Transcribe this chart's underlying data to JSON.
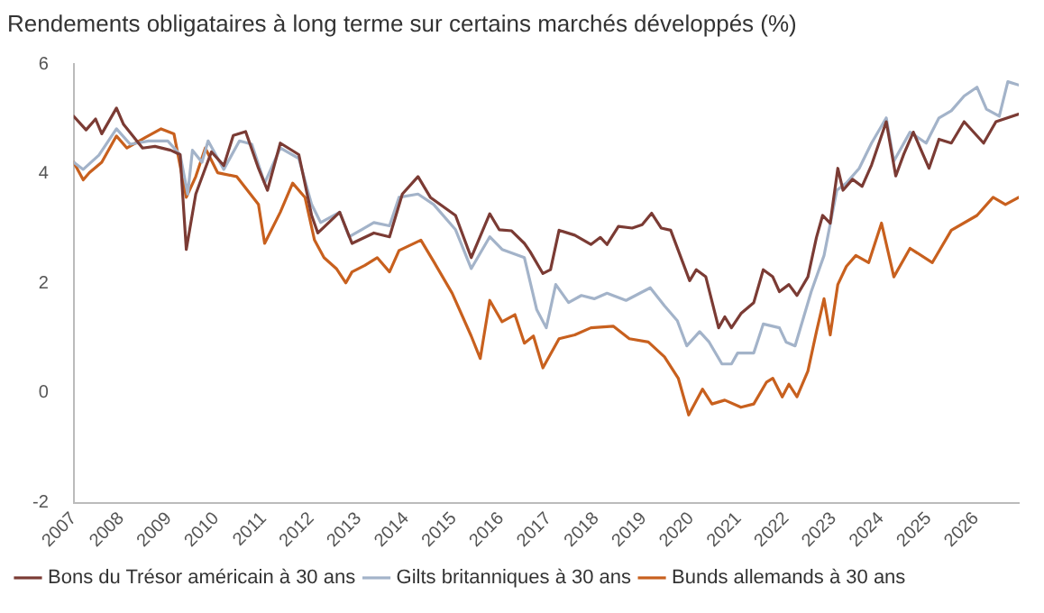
{
  "chart_data": {
    "type": "line",
    "title": "Rendements obligataires à long terme sur certains marchés développés (%)",
    "xlim": [
      2007,
      2026.9
    ],
    "xticks": [
      2007,
      2008,
      2009,
      2010,
      2011,
      2012,
      2013,
      2014,
      2015,
      2016,
      2017,
      2018,
      2019,
      2020,
      2021,
      2022,
      2023,
      2024,
      2025,
      2026
    ],
    "ylim": [
      -2,
      6
    ],
    "yticks": [
      -2,
      0,
      2,
      4,
      6
    ],
    "grid": false,
    "legend": "bottom",
    "marker": "none",
    "line_style": "solid",
    "series": [
      {
        "name": "Bons du Trésor américain à 30 ans",
        "color": "#7b3b34",
        "x": [
          2007.0,
          2007.26,
          2007.46,
          2007.59,
          2007.9,
          2008.05,
          2008.45,
          2008.71,
          2009.04,
          2009.24,
          2009.37,
          2009.57,
          2009.77,
          2009.9,
          2010.16,
          2010.36,
          2010.62,
          2010.89,
          2011.08,
          2011.35,
          2011.74,
          2012.01,
          2012.14,
          2012.6,
          2012.86,
          2013.32,
          2013.65,
          2013.92,
          2014.25,
          2014.51,
          2015.04,
          2015.37,
          2015.76,
          2015.96,
          2016.22,
          2016.49,
          2016.61,
          2016.88,
          2017.04,
          2017.22,
          2017.55,
          2017.89,
          2018.09,
          2018.23,
          2018.47,
          2018.76,
          2018.97,
          2019.17,
          2019.37,
          2019.57,
          2019.77,
          2019.97,
          2020.11,
          2020.31,
          2020.58,
          2020.71,
          2020.85,
          2021.05,
          2021.32,
          2021.52,
          2021.72,
          2021.86,
          2022.06,
          2022.23,
          2022.46,
          2022.64,
          2022.77,
          2022.93,
          2023.09,
          2023.2,
          2023.4,
          2023.6,
          2023.8,
          2024.11,
          2024.31,
          2024.48,
          2024.68,
          2025.01,
          2025.22,
          2025.48,
          2025.75,
          2026.16,
          2026.42,
          2026.9
        ],
        "values": [
          5.05,
          4.8,
          5.0,
          4.73,
          5.2,
          4.9,
          4.47,
          4.5,
          4.43,
          4.35,
          2.62,
          3.63,
          4.1,
          4.4,
          4.15,
          4.7,
          4.77,
          4.1,
          3.7,
          4.56,
          4.35,
          3.24,
          2.92,
          3.3,
          2.73,
          2.92,
          2.85,
          3.63,
          3.95,
          3.57,
          3.24,
          2.47,
          3.27,
          2.98,
          2.96,
          2.73,
          2.58,
          2.18,
          2.25,
          2.97,
          2.88,
          2.71,
          2.84,
          2.71,
          3.04,
          3.01,
          3.07,
          3.28,
          3.01,
          2.97,
          2.51,
          2.05,
          2.25,
          2.12,
          1.19,
          1.39,
          1.19,
          1.45,
          1.65,
          2.25,
          2.12,
          1.85,
          1.98,
          1.78,
          2.12,
          2.84,
          3.24,
          3.1,
          4.1,
          3.7,
          3.9,
          3.77,
          4.16,
          4.95,
          3.96,
          4.36,
          4.76,
          4.1,
          4.63,
          4.56,
          4.95,
          4.56,
          4.95,
          5.09
        ]
      },
      {
        "name": "Gilts britanniques à 30 ans",
        "color": "#a3b3c9",
        "x": [
          2007.0,
          2007.2,
          2007.53,
          2007.9,
          2008.19,
          2008.58,
          2008.98,
          2009.24,
          2009.4,
          2009.5,
          2009.7,
          2009.83,
          2010.16,
          2010.49,
          2010.75,
          2011.02,
          2011.35,
          2011.74,
          2012.01,
          2012.2,
          2012.6,
          2012.8,
          2013.06,
          2013.32,
          2013.65,
          2013.85,
          2014.25,
          2014.58,
          2015.04,
          2015.37,
          2015.76,
          2016.02,
          2016.49,
          2016.75,
          2016.95,
          2017.15,
          2017.42,
          2017.69,
          2017.96,
          2018.23,
          2018.63,
          2019.14,
          2019.44,
          2019.71,
          2019.91,
          2020.18,
          2020.38,
          2020.65,
          2020.85,
          2020.98,
          2021.32,
          2021.52,
          2021.86,
          2022.0,
          2022.19,
          2022.53,
          2022.8,
          2023.07,
          2023.27,
          2023.54,
          2023.8,
          2024.11,
          2024.27,
          2024.61,
          2024.95,
          2025.22,
          2025.48,
          2025.75,
          2026.02,
          2026.22,
          2026.49,
          2026.67,
          2026.9
        ],
        "values": [
          4.21,
          4.08,
          4.34,
          4.82,
          4.54,
          4.6,
          4.6,
          4.35,
          3.63,
          4.43,
          4.21,
          4.6,
          4.08,
          4.6,
          4.54,
          3.83,
          4.47,
          4.28,
          3.44,
          3.11,
          3.3,
          2.85,
          2.98,
          3.11,
          3.05,
          3.57,
          3.63,
          3.44,
          2.98,
          2.27,
          2.85,
          2.62,
          2.47,
          1.52,
          1.19,
          1.98,
          1.65,
          1.78,
          1.72,
          1.82,
          1.69,
          1.92,
          1.59,
          1.32,
          0.86,
          1.12,
          0.93,
          0.53,
          0.53,
          0.73,
          0.73,
          1.26,
          1.19,
          0.93,
          0.86,
          1.85,
          2.51,
          3.7,
          3.83,
          4.1,
          4.56,
          5.02,
          4.23,
          4.76,
          4.56,
          5.02,
          5.15,
          5.42,
          5.58,
          5.18,
          5.05,
          5.68,
          5.62
        ]
      },
      {
        "name": "Bunds allemands à 30 ans",
        "color": "#c8601e",
        "x": [
          2007.0,
          2007.2,
          2007.33,
          2007.59,
          2007.9,
          2008.12,
          2008.52,
          2008.84,
          2009.11,
          2009.37,
          2009.57,
          2009.77,
          2010.03,
          2010.43,
          2010.89,
          2011.02,
          2011.35,
          2011.61,
          2011.87,
          2012.07,
          2012.27,
          2012.53,
          2012.73,
          2012.86,
          2013.13,
          2013.39,
          2013.65,
          2013.85,
          2014.31,
          2014.58,
          2014.97,
          2015.37,
          2015.56,
          2015.76,
          2016.02,
          2016.29,
          2016.49,
          2016.68,
          2016.88,
          2017.22,
          2017.55,
          2017.89,
          2018.36,
          2018.7,
          2019.1,
          2019.44,
          2019.73,
          2019.95,
          2020.24,
          2020.44,
          2020.71,
          2021.05,
          2021.32,
          2021.59,
          2021.72,
          2021.92,
          2022.06,
          2022.23,
          2022.46,
          2022.64,
          2022.8,
          2022.93,
          2023.09,
          2023.27,
          2023.47,
          2023.74,
          2024.01,
          2024.27,
          2024.61,
          2025.08,
          2025.48,
          2026.02,
          2026.36,
          2026.62,
          2026.9
        ],
        "values": [
          4.21,
          3.89,
          4.02,
          4.21,
          4.69,
          4.47,
          4.67,
          4.82,
          4.73,
          3.57,
          3.95,
          4.47,
          4.02,
          3.95,
          3.44,
          2.73,
          3.3,
          3.83,
          3.57,
          2.79,
          2.47,
          2.27,
          2.01,
          2.21,
          2.33,
          2.47,
          2.21,
          2.6,
          2.79,
          2.4,
          1.82,
          1.04,
          0.63,
          1.69,
          1.3,
          1.43,
          0.91,
          1.04,
          0.46,
          0.99,
          1.06,
          1.19,
          1.22,
          0.99,
          0.93,
          0.66,
          0.27,
          -0.4,
          0.07,
          -0.2,
          -0.13,
          -0.26,
          -0.2,
          0.2,
          0.27,
          -0.07,
          0.16,
          -0.07,
          0.4,
          1.12,
          1.72,
          1.06,
          1.98,
          2.31,
          2.51,
          2.38,
          3.1,
          2.12,
          2.64,
          2.38,
          2.97,
          3.24,
          3.57,
          3.44,
          3.57
        ]
      }
    ]
  }
}
